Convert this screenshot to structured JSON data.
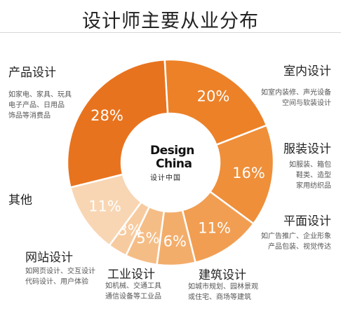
{
  "title": "设计师主要从业分布",
  "logo": {
    "line1": "Design",
    "line2": "China",
    "subtitle": "设计中国"
  },
  "chart_data": {
    "type": "pie",
    "donut": true,
    "categories": [
      {
        "name": "产品设计",
        "desc": [
          "如家电、家具、玩具",
          "电子产品、日用品",
          "饰品等消费品"
        ]
      },
      {
        "name": "室内设计",
        "desc": [
          "如室内装修、声光设备",
          "空间与软装设计"
        ]
      },
      {
        "name": "服装设计",
        "desc": [
          "如服装、箱包",
          "鞋类、造型",
          "家用纺织品"
        ]
      },
      {
        "name": "平面设计",
        "desc": [
          "如广告推广、企业形象",
          "产品包装、视觉传达"
        ]
      },
      {
        "name": "建筑设计",
        "desc": [
          "如城市规划、园林景观",
          "或住宅、商场等建筑"
        ]
      },
      {
        "name": "工业设计",
        "desc": [
          "如机械、交通工具",
          "通信设备等工业品"
        ]
      },
      {
        "name": "网站设计",
        "desc": [
          "如网页设计、交互设计",
          "代码设计、用户体验"
        ]
      },
      {
        "name": "其他",
        "desc": []
      }
    ],
    "slices": [
      {
        "label": "28%",
        "value": 28,
        "color": "#e8731e"
      },
      {
        "label": "20%",
        "value": 20,
        "color": "#ec8128"
      },
      {
        "label": "16%",
        "value": 16,
        "color": "#ef8f3a"
      },
      {
        "label": "11%",
        "value": 11,
        "color": "#f19e52"
      },
      {
        "label": "6%",
        "value": 6,
        "color": "#f3ad6b"
      },
      {
        "label": "5%",
        "value": 5,
        "color": "#f5bd86"
      },
      {
        "label": "3%",
        "value": 3,
        "color": "#f7cba0"
      },
      {
        "label": "11%",
        "value": 11,
        "color": "#f8d6b4"
      }
    ]
  }
}
